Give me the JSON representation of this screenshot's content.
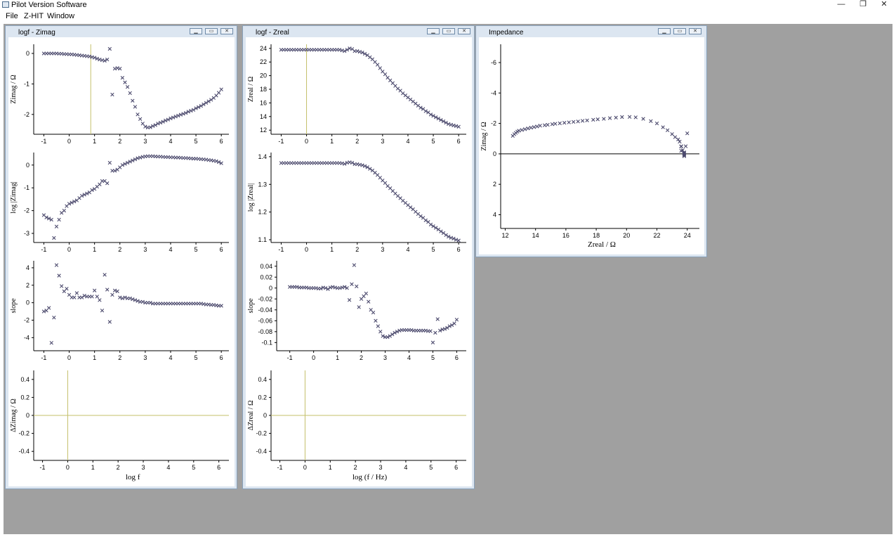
{
  "app": {
    "title": "Pilot Version Software",
    "controls": {
      "minimize": "—",
      "restore": "❐",
      "close": "✕"
    }
  },
  "menu": [
    "File",
    "Z-HIT",
    "Window"
  ],
  "colors": {
    "workspace": "#a0a0a0",
    "marker": "#4d4b6e",
    "marker_alt": "#3c3a5a",
    "reference_line": "#c4c06a"
  },
  "windows": {
    "zimag": {
      "title": "logf - Zimag",
      "xlabel": "log f",
      "panels": [
        {
          "ylabel": "Zimag / Ω",
          "xlim": [
            -1.4,
            6.3
          ],
          "ylim": [
            -2.65,
            0.3
          ],
          "yticks": [
            0,
            -1,
            -2
          ],
          "xticks": [
            -1,
            0,
            1,
            2,
            3,
            4,
            5,
            6
          ],
          "vline": 0.85,
          "hline": null
        },
        {
          "ylabel": "log |Zimag|",
          "xlim": [
            -1.4,
            6.3
          ],
          "ylim": [
            -3.4,
            0.55
          ],
          "yticks": [
            0,
            -1,
            -2,
            -3
          ],
          "xticks": [
            -1,
            0,
            1,
            2,
            3,
            4,
            5,
            6
          ],
          "vline": null,
          "hline": null
        },
        {
          "ylabel": "slope",
          "xlim": [
            -1.4,
            6.3
          ],
          "ylim": [
            -5.5,
            4.8
          ],
          "yticks": [
            4,
            2,
            0,
            -2,
            -4
          ],
          "xticks": [
            -1,
            0,
            1,
            2,
            3,
            4,
            5,
            6
          ],
          "vline": null,
          "hline": null
        },
        {
          "ylabel": "ΔZimag / Ω",
          "xlim": [
            -1.35,
            6.4
          ],
          "ylim": [
            -0.5,
            0.5
          ],
          "yticks": [
            0.4,
            0.2,
            0,
            -0.2,
            -0.4
          ],
          "xticks": [
            -1,
            0,
            1,
            2,
            3,
            4,
            5,
            6
          ],
          "vline": 0,
          "hline": 0
        }
      ]
    },
    "zreal": {
      "title": "logf - Zreal",
      "xlabel": "log (f / Hz)",
      "panels": [
        {
          "ylabel": "Zreal / Ω",
          "xlim": [
            -1.4,
            6.3
          ],
          "ylim": [
            11.4,
            24.6
          ],
          "yticks": [
            24,
            22,
            20,
            18,
            16,
            14,
            12
          ],
          "xticks": [
            -1,
            0,
            1,
            2,
            3,
            4,
            5,
            6
          ],
          "vline": 0,
          "hline": null
        },
        {
          "ylabel": "log |Zreal|",
          "xlim": [
            -1.4,
            6.3
          ],
          "ylim": [
            1.09,
            1.415
          ],
          "yticks": [
            1.4,
            1.3,
            1.2,
            1.1
          ],
          "xticks": [
            -1,
            0,
            1,
            2,
            3,
            4,
            5,
            6
          ],
          "vline": null,
          "hline": null
        },
        {
          "ylabel": "slope",
          "xlim": [
            -1.55,
            6.4
          ],
          "ylim": [
            -0.115,
            0.05
          ],
          "yticks": [
            0.04,
            0.02,
            0,
            -0.02,
            -0.04,
            -0.06,
            -0.08,
            -0.1
          ],
          "xticks": [
            -1,
            0,
            1,
            2,
            3,
            4,
            5,
            6
          ],
          "vline": null,
          "hline": null
        },
        {
          "ylabel": "ΔZreal / Ω",
          "xlim": [
            -1.35,
            6.4
          ],
          "ylim": [
            -0.5,
            0.5
          ],
          "yticks": [
            0.4,
            0.2,
            0,
            -0.2,
            -0.4
          ],
          "xticks": [
            -1,
            0,
            1,
            2,
            3,
            4,
            5,
            6
          ],
          "vline": 0,
          "hline": 0
        }
      ]
    },
    "impedance": {
      "title": "Impedance",
      "xlabel": "Zreal / Ω",
      "ylabel": "Zimag / Ω",
      "xlim": [
        11.7,
        24.8
      ],
      "ylim": [
        -7.2,
        4.9
      ],
      "xticks": [
        12,
        14,
        16,
        18,
        20,
        22,
        24
      ],
      "yticks": [
        -6,
        -4,
        -2,
        0,
        2,
        4
      ],
      "yaxis_inverted": true,
      "hline": 0
    }
  },
  "chart_data": [
    {
      "type": "scatter",
      "title": "",
      "xlabel": "log f",
      "ylabel": "Zimag / Ω",
      "x": [
        -1.0,
        -0.9,
        -0.8,
        -0.7,
        -0.6,
        -0.5,
        -0.4,
        -0.3,
        -0.2,
        -0.1,
        0.0,
        0.1,
        0.2,
        0.3,
        0.4,
        0.5,
        0.6,
        0.7,
        0.8,
        0.9,
        1.0,
        1.1,
        1.2,
        1.3,
        1.4,
        1.5,
        1.6,
        1.7,
        1.8,
        1.9,
        2.0,
        2.1,
        2.2,
        2.3,
        2.4,
        2.5,
        2.6,
        2.7,
        2.8,
        2.9,
        3.0,
        3.1,
        3.2,
        3.3,
        3.4,
        3.5,
        3.6,
        3.7,
        3.8,
        3.9,
        4.0,
        4.1,
        4.2,
        4.3,
        4.4,
        4.5,
        4.6,
        4.7,
        4.8,
        4.9,
        5.0,
        5.1,
        5.2,
        5.3,
        5.4,
        5.5,
        5.6,
        5.7,
        5.8,
        5.9,
        6.0
      ],
      "y": [
        0,
        0,
        0,
        0,
        0,
        0,
        -0.01,
        -0.01,
        -0.02,
        -0.02,
        -0.03,
        -0.03,
        -0.04,
        -0.05,
        -0.06,
        -0.07,
        -0.08,
        -0.09,
        -0.1,
        -0.12,
        -0.14,
        -0.17,
        -0.2,
        -0.22,
        -0.24,
        -0.2,
        0.15,
        -1.35,
        -0.5,
        -0.48,
        -0.5,
        -0.8,
        -0.95,
        -1.1,
        -1.3,
        -1.55,
        -1.75,
        -2.0,
        -2.15,
        -2.3,
        -2.4,
        -2.43,
        -2.42,
        -2.38,
        -2.35,
        -2.3,
        -2.27,
        -2.24,
        -2.2,
        -2.17,
        -2.13,
        -2.1,
        -2.07,
        -2.04,
        -2.01,
        -1.98,
        -1.95,
        -1.91,
        -1.88,
        -1.85,
        -1.8,
        -1.76,
        -1.72,
        -1.67,
        -1.62,
        -1.57,
        -1.52,
        -1.46,
        -1.38,
        -1.29,
        -1.18
      ]
    },
    {
      "type": "scatter",
      "title": "",
      "xlabel": "log f",
      "ylabel": "log |Zimag|",
      "x": [
        -1.0,
        -0.9,
        -0.8,
        -0.7,
        -0.6,
        -0.5,
        -0.4,
        -0.3,
        -0.2,
        -0.1,
        0.0,
        0.1,
        0.2,
        0.3,
        0.4,
        0.5,
        0.6,
        0.7,
        0.8,
        0.9,
        1.0,
        1.1,
        1.2,
        1.3,
        1.4,
        1.5,
        1.6,
        1.7,
        1.8,
        1.9,
        2.0,
        2.1,
        2.2,
        2.3,
        2.4,
        2.5,
        2.6,
        2.7,
        2.8,
        2.9,
        3.0,
        3.1,
        3.2,
        3.3,
        3.4,
        3.5,
        3.6,
        3.7,
        3.8,
        3.9,
        4.0,
        4.1,
        4.2,
        4.3,
        4.4,
        4.5,
        4.6,
        4.7,
        4.8,
        4.9,
        5.0,
        5.1,
        5.2,
        5.3,
        5.4,
        5.5,
        5.6,
        5.7,
        5.8,
        5.9,
        6.0
      ],
      "y": [
        -2.2,
        -2.3,
        -2.35,
        -2.4,
        -3.2,
        -2.7,
        -2.4,
        -2.1,
        -2.0,
        -1.8,
        -1.7,
        -1.65,
        -1.6,
        -1.55,
        -1.45,
        -1.35,
        -1.3,
        -1.25,
        -1.2,
        -1.1,
        -1.05,
        -0.95,
        -0.85,
        -0.7,
        -0.7,
        -0.8,
        0.1,
        -0.25,
        -0.25,
        -0.2,
        -0.1,
        0.0,
        0.05,
        0.1,
        0.15,
        0.2,
        0.25,
        0.3,
        0.33,
        0.36,
        0.38,
        0.39,
        0.39,
        0.39,
        0.38,
        0.37,
        0.37,
        0.36,
        0.35,
        0.35,
        0.34,
        0.34,
        0.33,
        0.33,
        0.32,
        0.31,
        0.31,
        0.3,
        0.29,
        0.28,
        0.28,
        0.27,
        0.26,
        0.25,
        0.24,
        0.22,
        0.21,
        0.19,
        0.17,
        0.13,
        0.08
      ]
    },
    {
      "type": "scatter",
      "title": "",
      "xlabel": "log f",
      "ylabel": "slope",
      "x": [
        -1.0,
        -0.9,
        -0.8,
        -0.7,
        -0.6,
        -0.5,
        -0.4,
        -0.3,
        -0.2,
        -0.1,
        0.0,
        0.1,
        0.2,
        0.3,
        0.4,
        0.5,
        0.6,
        0.7,
        0.8,
        0.9,
        1.0,
        1.1,
        1.2,
        1.3,
        1.4,
        1.5,
        1.6,
        1.7,
        1.8,
        1.9,
        2.0,
        2.1,
        2.2,
        2.3,
        2.4,
        2.5,
        2.6,
        2.7,
        2.8,
        2.9,
        3.0,
        3.1,
        3.2,
        3.3,
        3.4,
        3.5,
        3.6,
        3.7,
        3.8,
        3.9,
        4.0,
        4.1,
        4.2,
        4.3,
        4.4,
        4.5,
        4.6,
        4.7,
        4.8,
        4.9,
        5.0,
        5.1,
        5.2,
        5.3,
        5.4,
        5.5,
        5.6,
        5.7,
        5.8,
        5.9,
        6.0
      ],
      "y": [
        -1.0,
        -0.9,
        -0.6,
        -4.6,
        -1.7,
        4.3,
        3.1,
        1.9,
        1.3,
        1.6,
        0.9,
        0.6,
        0.6,
        1.1,
        0.6,
        0.6,
        0.8,
        0.7,
        0.7,
        0.7,
        1.4,
        0.7,
        0.3,
        -0.9,
        3.2,
        1.5,
        -2.2,
        0.9,
        1.4,
        1.3,
        0.6,
        0.5,
        0.6,
        0.5,
        0.5,
        0.4,
        0.3,
        0.2,
        0.1,
        0.1,
        0.0,
        0.0,
        0.0,
        -0.1,
        -0.1,
        -0.1,
        -0.1,
        -0.1,
        -0.1,
        -0.1,
        -0.1,
        -0.1,
        -0.1,
        -0.1,
        -0.1,
        -0.1,
        -0.1,
        -0.1,
        -0.1,
        -0.1,
        -0.1,
        -0.1,
        -0.1,
        -0.15,
        -0.2,
        -0.2,
        -0.25,
        -0.25,
        -0.3,
        -0.35,
        -0.35
      ]
    },
    {
      "type": "line",
      "title": "",
      "xlabel": "log f",
      "ylabel": "ΔZimag / Ω",
      "x": [
        -1.35,
        6.4
      ],
      "y": [
        0,
        0
      ]
    },
    {
      "type": "scatter",
      "title": "",
      "xlabel": "log (f / Hz)",
      "ylabel": "Zreal / Ω",
      "x": [
        -1.0,
        -0.9,
        -0.8,
        -0.7,
        -0.6,
        -0.5,
        -0.4,
        -0.3,
        -0.2,
        -0.1,
        0.0,
        0.1,
        0.2,
        0.3,
        0.4,
        0.5,
        0.6,
        0.7,
        0.8,
        0.9,
        1.0,
        1.1,
        1.2,
        1.3,
        1.4,
        1.5,
        1.6,
        1.7,
        1.8,
        1.9,
        2.0,
        2.1,
        2.2,
        2.3,
        2.4,
        2.5,
        2.6,
        2.7,
        2.8,
        2.9,
        3.0,
        3.1,
        3.2,
        3.3,
        3.4,
        3.5,
        3.6,
        3.7,
        3.8,
        3.9,
        4.0,
        4.1,
        4.2,
        4.3,
        4.4,
        4.5,
        4.6,
        4.7,
        4.8,
        4.9,
        5.0,
        5.1,
        5.2,
        5.3,
        5.4,
        5.5,
        5.6,
        5.7,
        5.8,
        5.9,
        6.0
      ],
      "y": [
        23.8,
        23.8,
        23.8,
        23.8,
        23.8,
        23.8,
        23.8,
        23.8,
        23.8,
        23.8,
        23.8,
        23.8,
        23.8,
        23.8,
        23.8,
        23.8,
        23.8,
        23.8,
        23.8,
        23.8,
        23.8,
        23.8,
        23.8,
        23.8,
        23.7,
        23.6,
        23.8,
        24.0,
        23.9,
        23.6,
        23.6,
        23.5,
        23.4,
        23.2,
        23.0,
        22.7,
        22.4,
        22.0,
        21.6,
        21.1,
        20.6,
        20.2,
        19.7,
        19.3,
        18.9,
        18.5,
        18.1,
        17.8,
        17.4,
        17.1,
        16.8,
        16.5,
        16.2,
        15.9,
        15.6,
        15.3,
        15.1,
        14.8,
        14.6,
        14.3,
        14.1,
        13.9,
        13.7,
        13.5,
        13.3,
        13.1,
        12.9,
        12.8,
        12.7,
        12.6,
        12.5
      ]
    },
    {
      "type": "scatter",
      "title": "",
      "xlabel": "log (f / Hz)",
      "ylabel": "log |Zreal|",
      "x": [
        -1.0,
        -0.9,
        -0.8,
        -0.7,
        -0.6,
        -0.5,
        -0.4,
        -0.3,
        -0.2,
        -0.1,
        0.0,
        0.1,
        0.2,
        0.3,
        0.4,
        0.5,
        0.6,
        0.7,
        0.8,
        0.9,
        1.0,
        1.1,
        1.2,
        1.3,
        1.4,
        1.5,
        1.6,
        1.7,
        1.8,
        1.9,
        2.0,
        2.1,
        2.2,
        2.3,
        2.4,
        2.5,
        2.6,
        2.7,
        2.8,
        2.9,
        3.0,
        3.1,
        3.2,
        3.3,
        3.4,
        3.5,
        3.6,
        3.7,
        3.8,
        3.9,
        4.0,
        4.1,
        4.2,
        4.3,
        4.4,
        4.5,
        4.6,
        4.7,
        4.8,
        4.9,
        5.0,
        5.1,
        5.2,
        5.3,
        5.4,
        5.5,
        5.6,
        5.7,
        5.8,
        5.9,
        6.0
      ],
      "y": [
        1.377,
        1.377,
        1.377,
        1.377,
        1.377,
        1.377,
        1.377,
        1.377,
        1.377,
        1.377,
        1.377,
        1.377,
        1.377,
        1.377,
        1.377,
        1.377,
        1.377,
        1.377,
        1.377,
        1.377,
        1.377,
        1.377,
        1.377,
        1.377,
        1.376,
        1.374,
        1.378,
        1.38,
        1.378,
        1.373,
        1.373,
        1.371,
        1.369,
        1.366,
        1.362,
        1.356,
        1.35,
        1.342,
        1.334,
        1.324,
        1.314,
        1.305,
        1.294,
        1.286,
        1.276,
        1.267,
        1.258,
        1.25,
        1.241,
        1.233,
        1.225,
        1.217,
        1.21,
        1.201,
        1.193,
        1.185,
        1.179,
        1.17,
        1.164,
        1.155,
        1.149,
        1.143,
        1.137,
        1.13,
        1.124,
        1.117,
        1.111,
        1.107,
        1.104,
        1.1,
        1.097
      ]
    },
    {
      "type": "scatter",
      "title": "",
      "xlabel": "log (f / Hz)",
      "ylabel": "slope",
      "x": [
        -1.0,
        -0.9,
        -0.8,
        -0.7,
        -0.6,
        -0.5,
        -0.4,
        -0.3,
        -0.2,
        -0.1,
        0.0,
        0.1,
        0.2,
        0.3,
        0.4,
        0.5,
        0.6,
        0.7,
        0.8,
        0.9,
        1.0,
        1.1,
        1.2,
        1.3,
        1.4,
        1.5,
        1.6,
        1.7,
        1.8,
        1.9,
        2.0,
        2.1,
        2.2,
        2.3,
        2.4,
        2.5,
        2.6,
        2.7,
        2.8,
        2.9,
        3.0,
        3.1,
        3.2,
        3.3,
        3.4,
        3.5,
        3.6,
        3.7,
        3.8,
        3.9,
        4.0,
        4.1,
        4.2,
        4.3,
        4.4,
        4.5,
        4.6,
        4.7,
        4.8,
        4.9,
        5.0,
        5.1,
        5.2,
        5.3,
        5.4,
        5.5,
        5.6,
        5.7,
        5.8,
        5.9,
        6.0
      ],
      "y": [
        0.002,
        0.002,
        0.002,
        0.002,
        0.001,
        0.001,
        0.001,
        0.001,
        0.0,
        0.0,
        0.0,
        0.0,
        -0.001,
        -0.001,
        0.001,
        0.0,
        -0.002,
        0.001,
        0.002,
        0.001,
        0.0,
        0.0,
        0.001,
        0.002,
        0.0,
        -0.022,
        0.007,
        0.042,
        0.003,
        -0.035,
        -0.02,
        -0.015,
        -0.01,
        -0.025,
        -0.04,
        -0.045,
        -0.06,
        -0.07,
        -0.08,
        -0.088,
        -0.09,
        -0.09,
        -0.088,
        -0.085,
        -0.082,
        -0.08,
        -0.078,
        -0.077,
        -0.077,
        -0.077,
        -0.077,
        -0.077,
        -0.078,
        -0.078,
        -0.078,
        -0.078,
        -0.078,
        -0.078,
        -0.079,
        -0.079,
        -0.1,
        -0.082,
        -0.057,
        -0.078,
        -0.076,
        -0.075,
        -0.073,
        -0.07,
        -0.068,
        -0.065,
        -0.058
      ]
    },
    {
      "type": "line",
      "title": "",
      "xlabel": "log (f / Hz)",
      "ylabel": "ΔZreal / Ω",
      "x": [
        -1.35,
        6.4
      ],
      "y": [
        0,
        0
      ]
    },
    {
      "type": "scatter",
      "title": "",
      "xlabel": "Zreal / Ω",
      "ylabel": "Zimag / Ω",
      "x": [
        12.5,
        12.6,
        12.7,
        12.8,
        12.9,
        13.1,
        13.3,
        13.5,
        13.7,
        13.9,
        14.1,
        14.3,
        14.6,
        14.8,
        15.1,
        15.3,
        15.6,
        15.9,
        16.2,
        16.5,
        16.8,
        17.1,
        17.4,
        17.8,
        18.1,
        18.5,
        18.9,
        19.3,
        19.7,
        20.2,
        20.6,
        21.1,
        21.6,
        22.0,
        22.4,
        22.7,
        23.0,
        23.2,
        23.4,
        23.5,
        23.6,
        23.6,
        23.9,
        24.0,
        23.8,
        23.6,
        23.7,
        23.8,
        23.8,
        23.8,
        23.8,
        23.8
      ],
      "y": [
        -1.18,
        -1.29,
        -1.38,
        -1.46,
        -1.52,
        -1.57,
        -1.62,
        -1.67,
        -1.72,
        -1.76,
        -1.8,
        -1.85,
        -1.88,
        -1.91,
        -1.95,
        -1.98,
        -2.01,
        -2.04,
        -2.07,
        -2.1,
        -2.13,
        -2.17,
        -2.2,
        -2.24,
        -2.27,
        -2.3,
        -2.35,
        -2.38,
        -2.42,
        -2.43,
        -2.4,
        -2.3,
        -2.15,
        -2.0,
        -1.75,
        -1.55,
        -1.3,
        -1.1,
        -0.95,
        -0.8,
        -0.5,
        -0.48,
        -0.5,
        -1.35,
        0.15,
        -0.2,
        -0.24,
        -0.1,
        -0.05,
        0.0,
        0.05,
        0.1
      ]
    }
  ]
}
